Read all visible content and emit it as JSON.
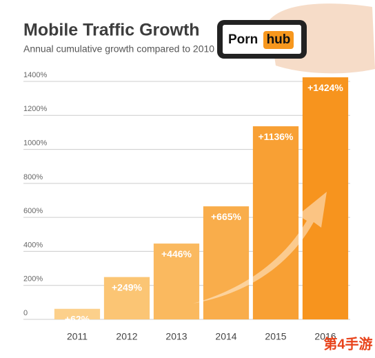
{
  "chart_data": {
    "type": "bar",
    "title": "Mobile Traffic Growth",
    "subtitle": "Annual cumulative growth compared to 2010",
    "categories": [
      "2011",
      "2012",
      "2013",
      "2014",
      "2015",
      "2016"
    ],
    "values": [
      62,
      249,
      446,
      665,
      1136,
      1424
    ],
    "value_labels": [
      "+62%",
      "+249%",
      "+446%",
      "+665%",
      "+1136%",
      "+1424%"
    ],
    "colors": [
      "#fcd08b",
      "#fbc574",
      "#fab95f",
      "#f9ad4b",
      "#f8a034",
      "#f7941e"
    ],
    "ylim": [
      0,
      1400
    ],
    "yticks": [
      0,
      {
        "value": 200,
        "label": "200%"
      },
      {
        "value": 400,
        "label": "400%"
      },
      {
        "value": 600,
        "label": "600%"
      },
      {
        "value": 800,
        "label": "800%"
      },
      {
        "value": 1000,
        "label": "1000%"
      },
      {
        "value": 1200,
        "label": "1200%"
      },
      {
        "value": 1400,
        "label": "1400%"
      }
    ],
    "grid": true
  },
  "logo": {
    "left": "Porn",
    "right": "hub"
  },
  "watermark": "第4手游"
}
